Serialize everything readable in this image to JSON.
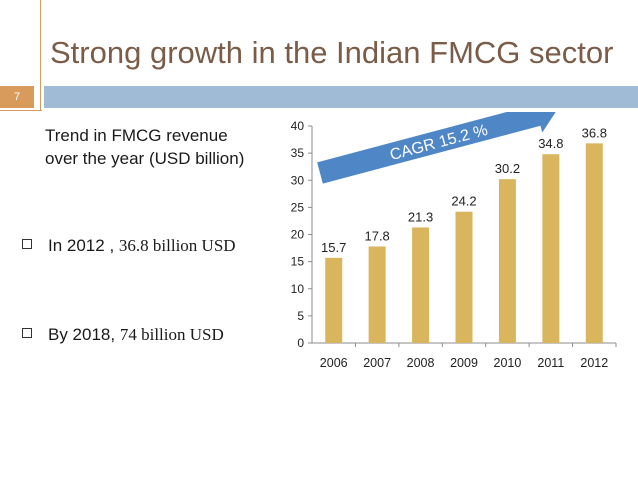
{
  "slide": {
    "title": "Strong growth in the Indian FMCG sector",
    "number": "7"
  },
  "left": {
    "trend_text": "Trend in FMCG revenue over the year (USD billion)",
    "bullet1_prefix": "In 2012 ,",
    "bullet1_value": "36.8 billion USD",
    "bullet2_prefix": "By 2018,",
    "bullet2_value": "74 billion USD"
  },
  "chart_data": {
    "type": "bar",
    "categories": [
      "2006",
      "2007",
      "2008",
      "2009",
      "2010",
      "2011",
      "2012"
    ],
    "values": [
      15.7,
      17.8,
      21.3,
      24.2,
      30.2,
      34.8,
      36.8
    ],
    "data_labels": [
      "15.7",
      "17.8",
      "21.3",
      "24.2",
      "30.2",
      "34.8",
      "36.8"
    ],
    "ylim": [
      0,
      40
    ],
    "yticks": [
      0,
      5,
      10,
      15,
      20,
      25,
      30,
      35,
      40
    ],
    "grid": false,
    "annotation": "CAGR 15.2 %",
    "bar_color": "#d9b65e",
    "arrow_color": "#4f86c6"
  }
}
